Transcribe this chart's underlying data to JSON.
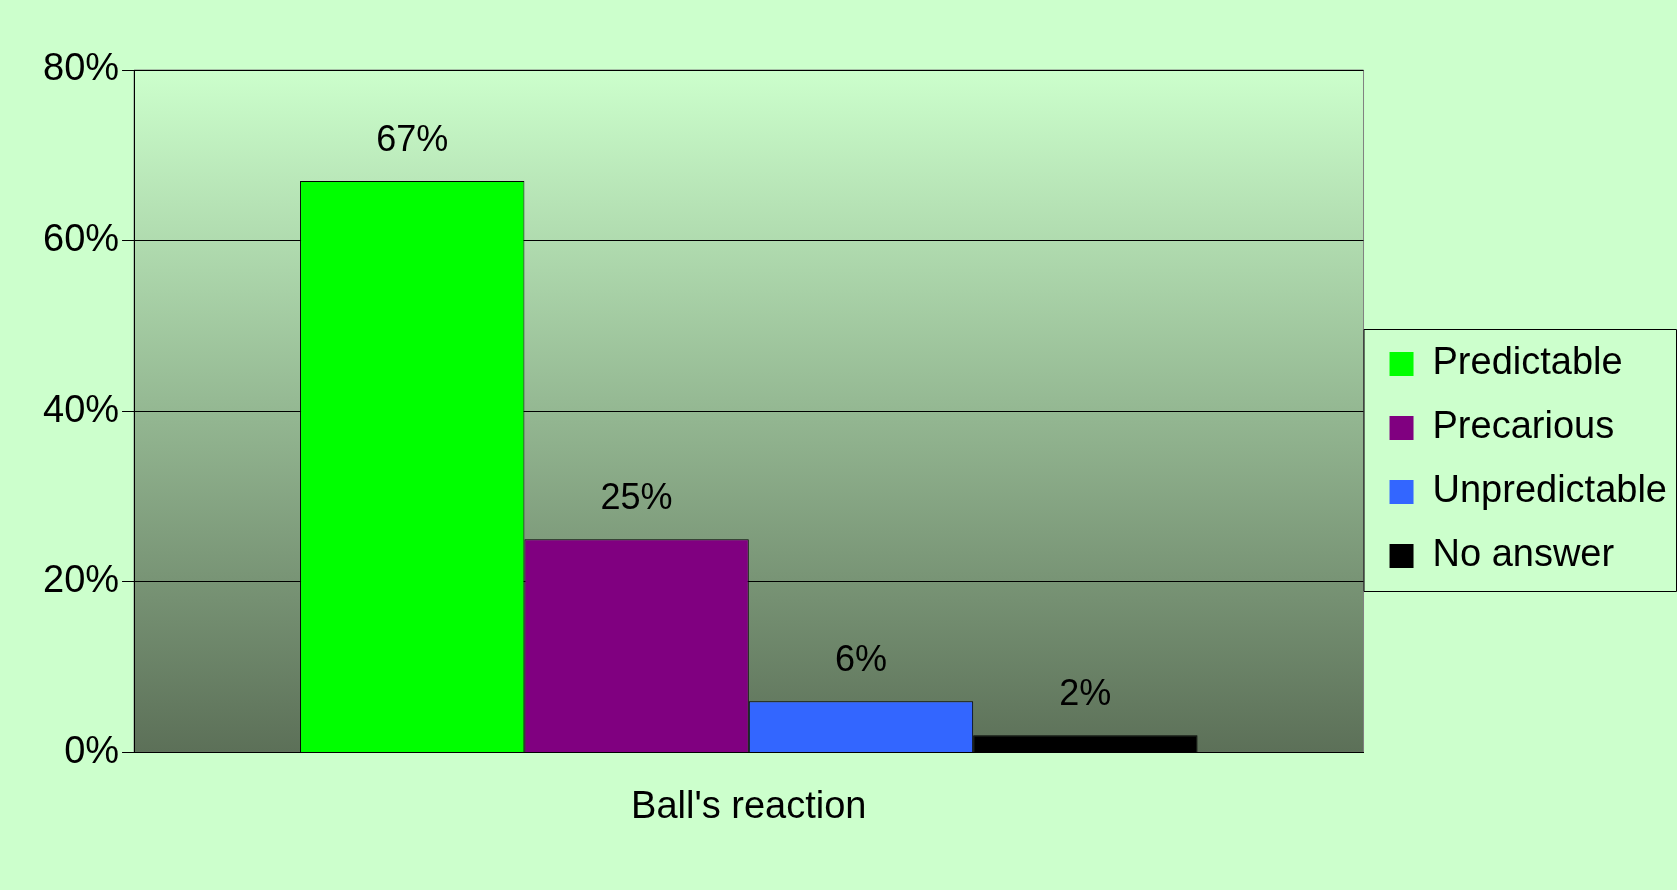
{
  "chart_data": {
    "type": "bar",
    "categories": [
      "Ball's reaction"
    ],
    "series": [
      {
        "name": "Predictable",
        "color": "#00ff00",
        "values": [
          67
        ],
        "value_labels": [
          "67%"
        ]
      },
      {
        "name": "Precarious",
        "color": "#800080",
        "values": [
          25
        ],
        "value_labels": [
          "25%"
        ]
      },
      {
        "name": "Unpredictable",
        "color": "#3366ff",
        "values": [
          6
        ],
        "value_labels": [
          "6%"
        ]
      },
      {
        "name": "No answer",
        "color": "#000000",
        "values": [
          2
        ],
        "value_labels": [
          "2%"
        ]
      }
    ],
    "ylim": [
      0,
      80
    ],
    "yticks": [
      {
        "value": 0,
        "label": "0%"
      },
      {
        "value": 20,
        "label": "20%"
      },
      {
        "value": 40,
        "label": "40%"
      },
      {
        "value": 60,
        "label": "60%"
      },
      {
        "value": 80,
        "label": "80%"
      }
    ],
    "grid": "y",
    "legend": "right"
  }
}
